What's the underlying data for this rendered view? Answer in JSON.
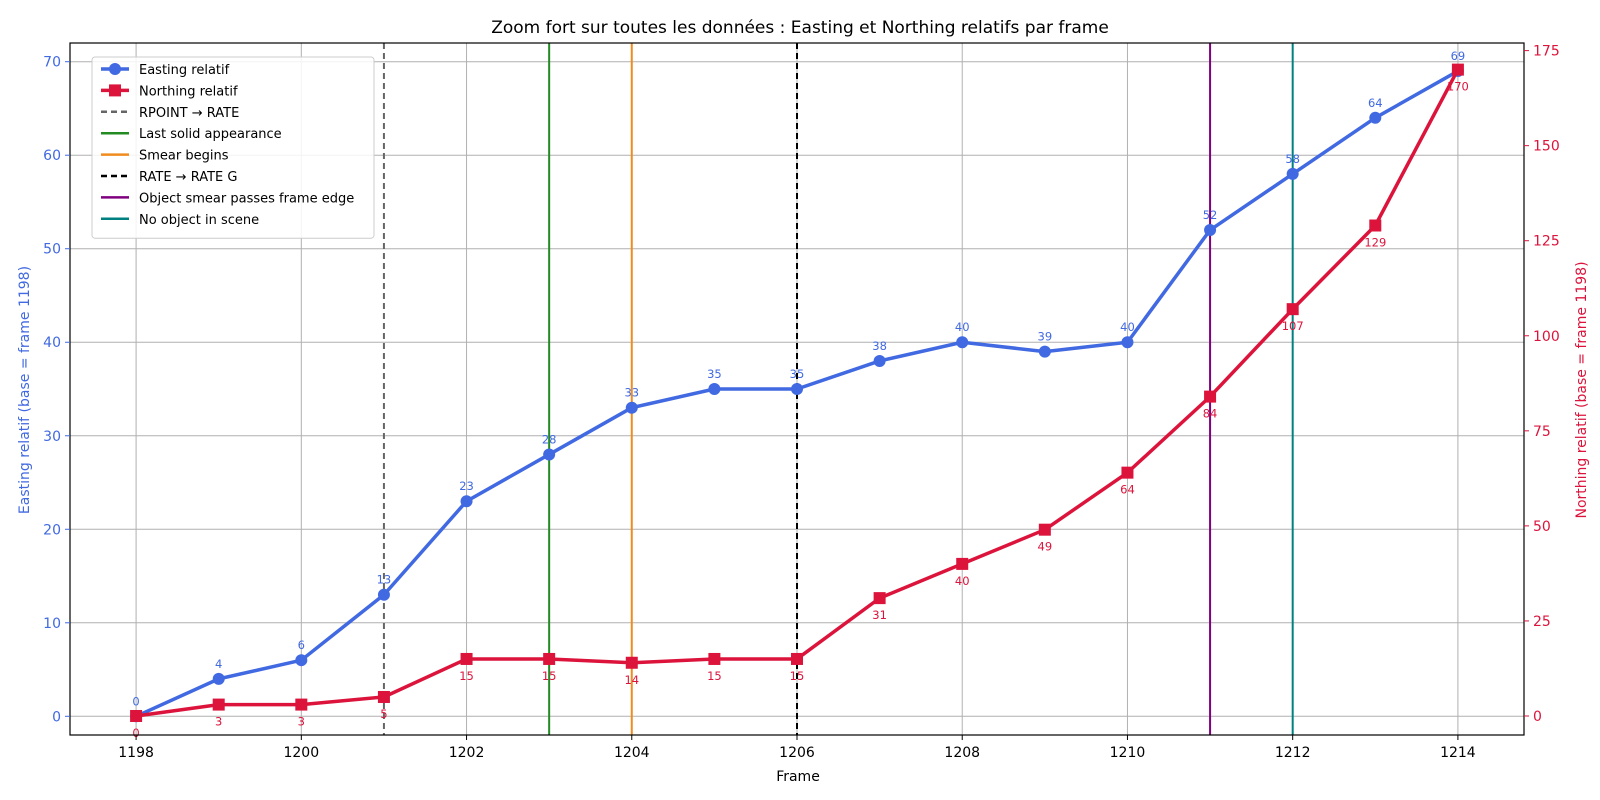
{
  "chart_data": {
    "type": "line",
    "title": "Zoom fort sur toutes les données : Easting et Northing relatifs par frame",
    "xlabel": "Frame",
    "ylabel_left": "Easting relatif (base = frame 1198)",
    "ylabel_right": "Northing relatif (base = frame 1198)",
    "xlim": [
      1197.2,
      1214.8
    ],
    "ylim_left": [
      -2,
      72
    ],
    "ylim_right": [
      -5,
      177
    ],
    "x_ticks": [
      1198,
      1200,
      1202,
      1204,
      1206,
      1208,
      1210,
      1212,
      1214
    ],
    "x_tick_labels": [
      "1198",
      "1200",
      "1202",
      "1204",
      "1206",
      "1208",
      "1210",
      "1212",
      "1214"
    ],
    "y_left_ticks": [
      0,
      10,
      20,
      30,
      40,
      50,
      60,
      70
    ],
    "y_left_tick_labels": [
      "0",
      "10",
      "20",
      "30",
      "40",
      "50",
      "60",
      "70"
    ],
    "y_right_ticks": [
      0,
      25,
      50,
      75,
      100,
      125,
      150,
      175
    ],
    "y_right_tick_labels": [
      "0",
      "25",
      "50",
      "75",
      "100",
      "125",
      "150",
      "175"
    ],
    "x": [
      1198,
      1199,
      1200,
      1201,
      1202,
      1203,
      1204,
      1205,
      1206,
      1207,
      1208,
      1209,
      1210,
      1211,
      1212,
      1213,
      1214
    ],
    "series": [
      {
        "name": "Easting relatif",
        "axis": "left",
        "marker": "circle",
        "color": "#4169e1",
        "values": [
          0,
          4,
          6,
          13,
          23,
          28,
          33,
          35,
          35,
          38,
          40,
          39,
          40,
          52,
          58,
          64,
          69
        ],
        "labels": [
          "0",
          "4",
          "6",
          "13",
          "23",
          "28",
          "33",
          "35",
          "35",
          "38",
          "40",
          "39",
          "40",
          "52",
          "58",
          "64",
          "69"
        ]
      },
      {
        "name": "Northing relatif",
        "axis": "right",
        "marker": "square",
        "color": "#dc143c",
        "values": [
          0,
          3,
          3,
          5,
          15,
          15,
          14,
          15,
          15,
          31,
          40,
          49,
          64,
          84,
          107,
          129,
          170
        ],
        "labels": [
          "0",
          "3",
          "3",
          "5",
          "15",
          "15",
          "14",
          "15",
          "15",
          "31",
          "40",
          "49",
          "64",
          "84",
          "107",
          "129",
          "170"
        ]
      }
    ],
    "vlines": [
      {
        "x": 1201,
        "label": "RPOINT → RATE",
        "color": "#666666",
        "style": "dashed"
      },
      {
        "x": 1203,
        "label": "Last solid appearance",
        "color": "#228b22",
        "style": "solid"
      },
      {
        "x": 1204,
        "label": "Smear begins",
        "color": "#f08c1e",
        "style": "solid"
      },
      {
        "x": 1206,
        "label": "RATE → RATE G",
        "color": "#000000",
        "style": "dashed"
      },
      {
        "x": 1211,
        "label": "Object smear passes frame edge",
        "color": "#800080",
        "style": "solid"
      },
      {
        "x": 1212,
        "label": "No object in scene",
        "color": "#008080",
        "style": "solid"
      }
    ],
    "grid": true,
    "legend_position": "top-left"
  }
}
